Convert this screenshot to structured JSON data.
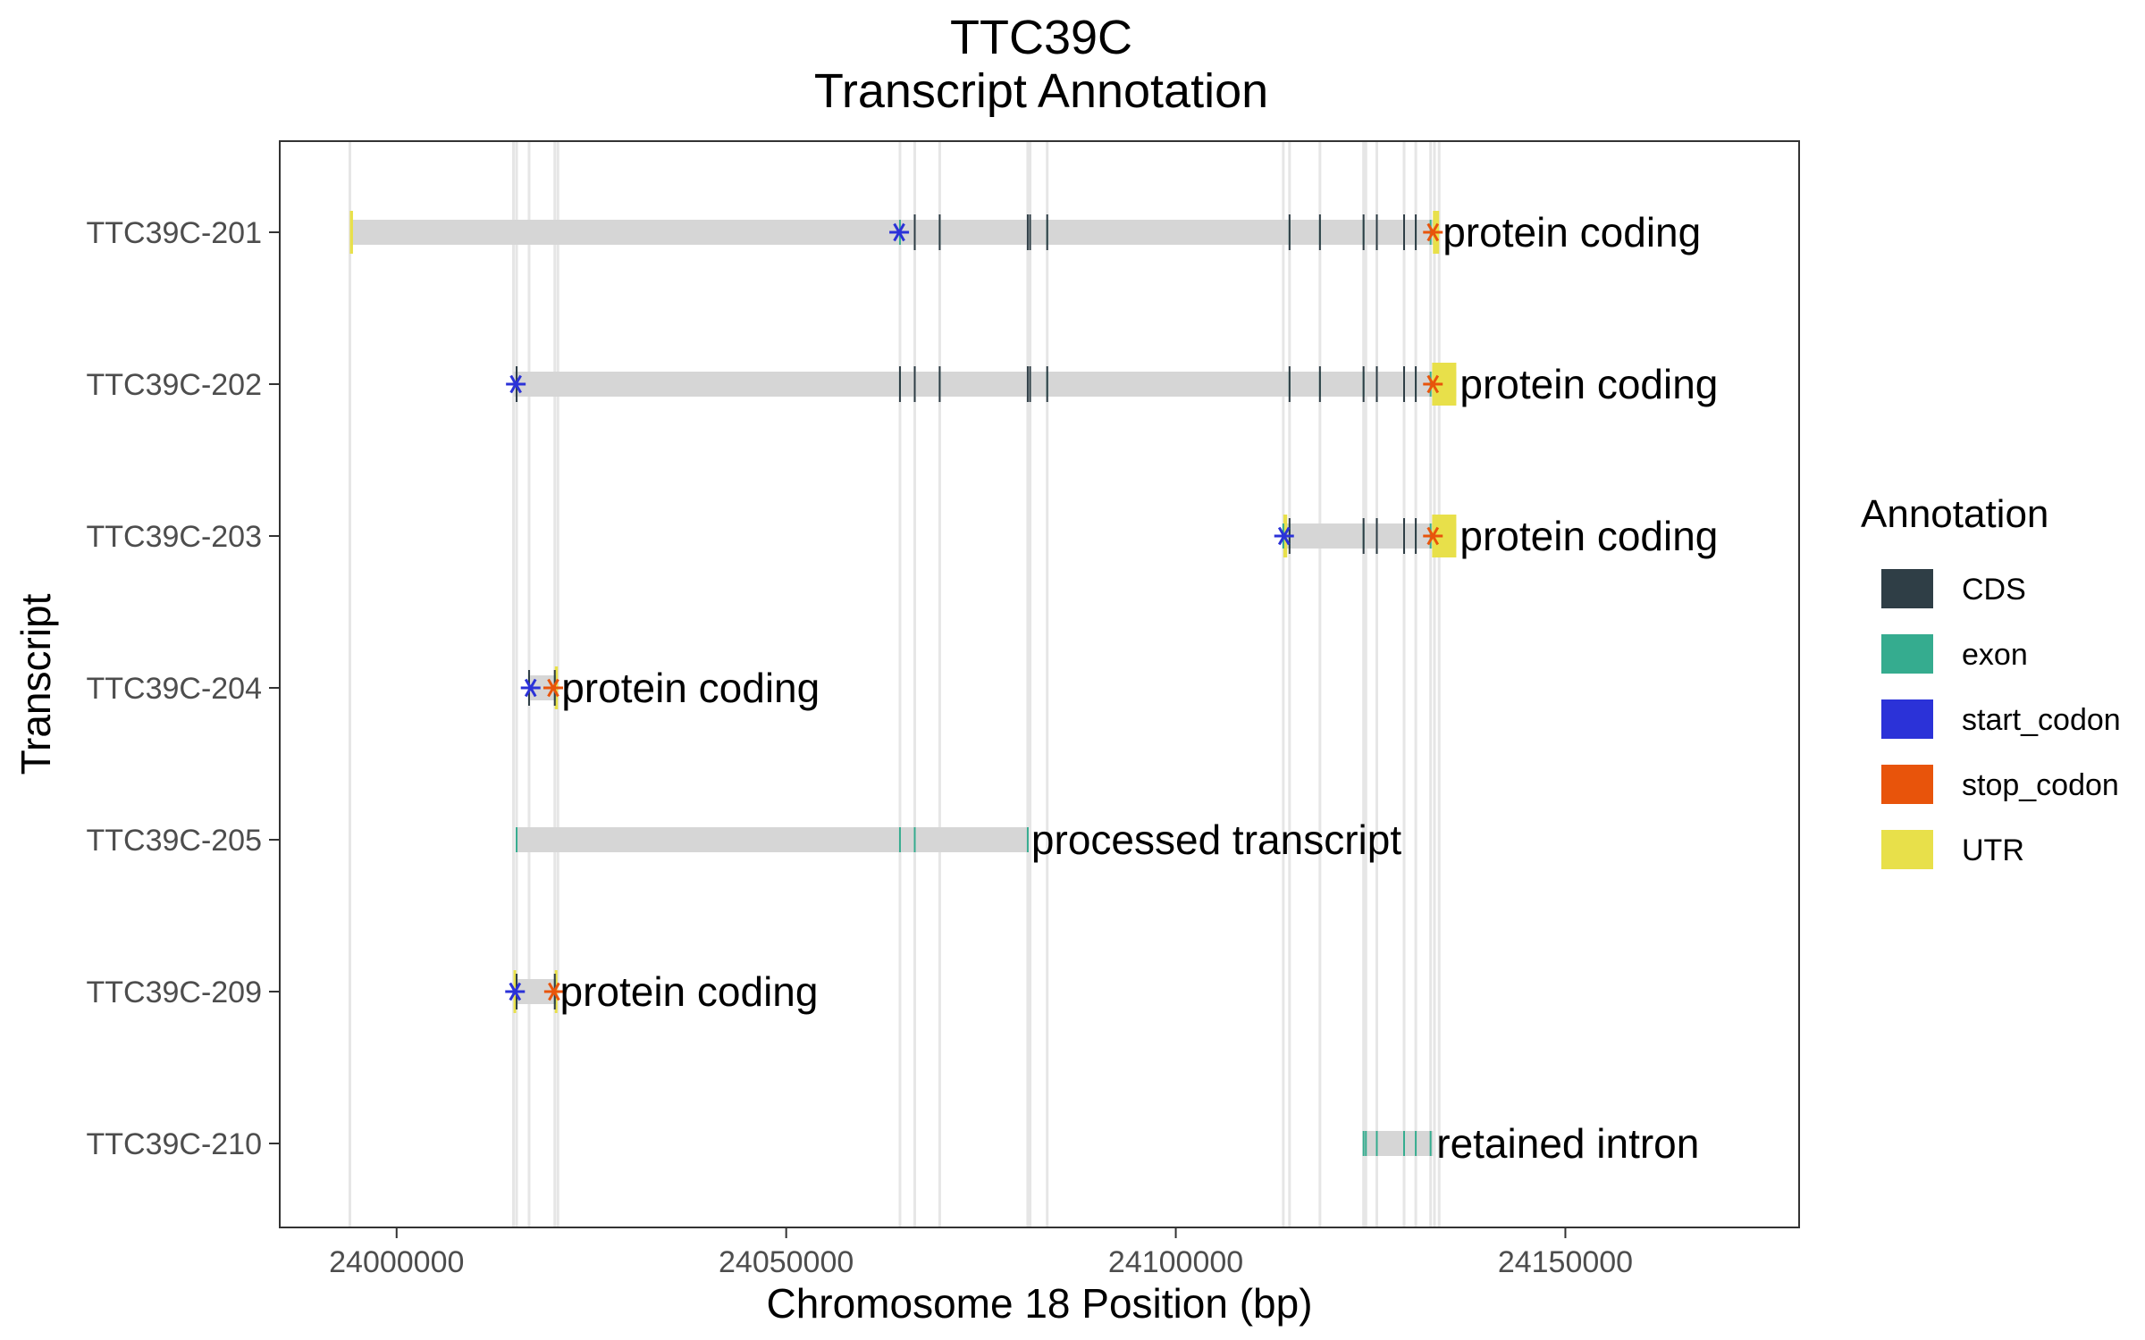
{
  "chart_data": {
    "type": "gantt",
    "title": "TTC39C",
    "subtitle": "Transcript Annotation",
    "xlabel": "Chromosome 18 Position (bp)",
    "ylabel": "Transcript",
    "xlim": [
      23985000,
      24180000
    ],
    "xticks": [
      "24000000",
      "24050000",
      "24100000",
      "24150000"
    ],
    "xtick_values": [
      24000000,
      24050000,
      24100000,
      24150000
    ],
    "grid": "vertical lines at exon boundaries",
    "legend_title": "Annotation",
    "legend_position": "right",
    "legend": [
      {
        "name": "CDS",
        "color": "#2f3e46"
      },
      {
        "name": "exon",
        "color": "#35ac8f"
      },
      {
        "name": "start_codon",
        "color": "#2b32d8"
      },
      {
        "name": "stop_codon",
        "color": "#e8540b"
      },
      {
        "name": "UTR",
        "color": "#e8e04a"
      }
    ],
    "colors": {
      "span": "#d6d6d6",
      "grid": "#e6e6e6"
    },
    "boundaries": [
      23994000,
      24015000,
      24015400,
      24017000,
      24020300,
      24020700,
      24064600,
      24066500,
      24069700,
      24081000,
      24081300,
      24083500,
      24113800,
      24114600,
      24118500,
      24124100,
      24124400,
      24125800,
      24129300,
      24130800,
      24132700,
      24133200,
      24133800
    ],
    "transcripts": [
      {
        "name": "TTC39C-210",
        "type": "retained intron",
        "start": 24124100,
        "end": 24133000,
        "exons": [
          24124100,
          24124400,
          24125800,
          24129300,
          24130800,
          24132700
        ],
        "cds": [],
        "utr": [],
        "start_codon": null,
        "stop_codon": null
      },
      {
        "name": "TTC39C-209",
        "type": "protein coding",
        "start": 24015000,
        "end": 24020500,
        "exons": [
          24015400,
          24020300
        ],
        "cds": [
          24015400,
          24020300
        ],
        "utr": [
          [
            24015000,
            24015300
          ],
          [
            24020300,
            24020500
          ]
        ],
        "start_codon": 24015200,
        "stop_codon": 24020200
      },
      {
        "name": "TTC39C-205",
        "type": "processed transcript",
        "start": 24015400,
        "end": 24081000,
        "exons": [
          24015400,
          24064600,
          24066500,
          24081000
        ],
        "cds": [],
        "utr": [],
        "start_codon": null,
        "stop_codon": null
      },
      {
        "name": "TTC39C-204",
        "type": "protein coding",
        "start": 24017000,
        "end": 24020700,
        "exons": [
          24017000,
          24020300
        ],
        "cds": [
          24017000,
          24020300
        ],
        "utr": [
          [
            24020300,
            24020700
          ]
        ],
        "start_codon": 24017200,
        "stop_codon": 24020100
      },
      {
        "name": "TTC39C-203",
        "type": "protein coding",
        "start": 24113800,
        "end": 24136000,
        "exons": [
          24113800,
          24114600,
          24124100,
          24125800,
          24129300,
          24130800,
          24132700
        ],
        "cds": [
          24114600,
          24124100,
          24125800,
          24129300,
          24130800
        ],
        "utr": [
          [
            24113800,
            24114300
          ],
          [
            24132900,
            24136000
          ]
        ],
        "start_codon": 24113900,
        "stop_codon": 24133000
      },
      {
        "name": "TTC39C-202",
        "type": "protein coding",
        "start": 24015000,
        "end": 24136000,
        "exons": [
          24015400,
          24064600,
          24066500,
          24069700,
          24081300,
          24083500,
          24114600,
          24118500,
          24124100,
          24125800,
          24129300,
          24130800,
          24132700
        ],
        "cds": [
          24015400,
          24064600,
          24066500,
          24069700,
          24081000,
          24081300,
          24083500,
          24114600,
          24118500,
          24124100,
          24125800,
          24129300,
          24130800
        ],
        "utr": [
          [
            24132900,
            24136000
          ]
        ],
        "start_codon": 24015300,
        "stop_codon": 24133000
      },
      {
        "name": "TTC39C-201",
        "type": "protein coding",
        "start": 23994000,
        "end": 24133800,
        "exons": [
          24064600,
          24066500,
          24069700,
          24081300,
          24083500,
          24114600,
          24118500,
          24124100,
          24125800,
          24129300,
          24130800,
          24132700
        ],
        "cds": [
          24066500,
          24069700,
          24081000,
          24081300,
          24083500,
          24114600,
          24118500,
          24124100,
          24125800,
          24129300,
          24130800
        ],
        "utr": [
          [
            23994000,
            23994400
          ],
          [
            24133000,
            24133800
          ]
        ],
        "start_codon": 24064500,
        "stop_codon": 24133000
      }
    ]
  }
}
